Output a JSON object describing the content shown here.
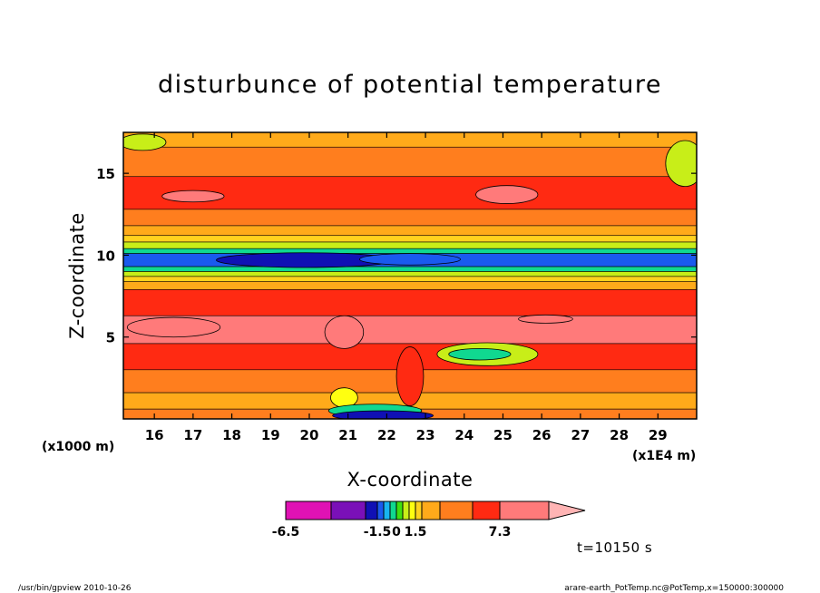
{
  "chart_data": {
    "type": "heatmap",
    "title": "disturbunce of potential temperature",
    "xlabel": "X-coordinate",
    "ylabel": "Z-coordinate",
    "x_unit_left": "(x1000 m)",
    "x_unit_right": "(x1E4 m)",
    "x_ticks": [
      16,
      17,
      18,
      19,
      20,
      21,
      22,
      23,
      24,
      25,
      26,
      27,
      28,
      29
    ],
    "y_ticks": [
      5,
      10,
      15
    ],
    "xlim": [
      15.2,
      30
    ],
    "ylim": [
      0,
      17.5
    ],
    "colorbar": {
      "levels": [
        -6.5,
        -4.5,
        -2.5,
        -1.5,
        -1,
        -0.5,
        0,
        0.5,
        1,
        1.5,
        2.5,
        3.5,
        4.5,
        7.3
      ],
      "colors": [
        "#e012b4",
        "#7a10b8",
        "#1010b4",
        "#1a5aee",
        "#18b4f0",
        "#10d890",
        "#40e010",
        "#c8ee18",
        "#ffff10",
        "#ffd21e",
        "#ffaa1a",
        "#ff7e1e",
        "#ff2a12",
        "#ff7a7a",
        "#ffb4b4"
      ],
      "tick_labels": [
        {
          "text": "-6.5",
          "value": -6.5
        },
        {
          "text": "-1.5",
          "value": -1.5
        },
        {
          "text": "0",
          "value": 0
        },
        {
          "text": "1.5",
          "value": 1.5
        },
        {
          "text": "7.3",
          "value": 7.3
        }
      ]
    },
    "bands": [
      {
        "z": [
          16.6,
          17.5
        ],
        "value": 2.0
      },
      {
        "z": [
          14.8,
          16.6
        ],
        "value": 3.0
      },
      {
        "z": [
          12.8,
          14.8
        ],
        "value": 4.0
      },
      {
        "z": [
          11.8,
          12.8
        ],
        "value": 3.0
      },
      {
        "z": [
          11.2,
          11.8
        ],
        "value": 2.0
      },
      {
        "z": [
          10.8,
          11.2
        ],
        "value": 1.2
      },
      {
        "z": [
          10.4,
          10.8
        ],
        "value": 0.3
      },
      {
        "z": [
          10.1,
          10.4
        ],
        "value": -0.8
      },
      {
        "z": [
          9.3,
          10.1
        ],
        "value": -2.0
      },
      {
        "z": [
          9.0,
          9.3
        ],
        "value": -0.8
      },
      {
        "z": [
          8.7,
          9.0
        ],
        "value": 0.3
      },
      {
        "z": [
          8.4,
          8.7
        ],
        "value": 1.2
      },
      {
        "z": [
          7.9,
          8.4
        ],
        "value": 2.0
      },
      {
        "z": [
          6.3,
          7.9
        ],
        "value": 4.0
      },
      {
        "z": [
          4.6,
          6.3
        ],
        "value": 5.0
      },
      {
        "z": [
          3.0,
          4.6
        ],
        "value": 4.0
      },
      {
        "z": [
          1.6,
          3.0
        ],
        "value": 3.0
      },
      {
        "z": [
          0.6,
          1.6
        ],
        "value": 2.0
      },
      {
        "z": [
          0.0,
          0.6
        ],
        "value": 3.0
      }
    ],
    "features": [
      {
        "kind": "ellipse",
        "x": 19.9,
        "z": 9.7,
        "rx": 2.3,
        "rz": 0.45,
        "value": -3.5
      },
      {
        "kind": "ellipse",
        "x": 22.6,
        "z": 9.75,
        "rx": 1.3,
        "rz": 0.35,
        "value": -1.8
      },
      {
        "kind": "ellipse",
        "x": 24.6,
        "z": 3.95,
        "rx": 1.3,
        "rz": 0.7,
        "value": 0.3
      },
      {
        "kind": "ellipse",
        "x": 24.4,
        "z": 3.95,
        "rx": 0.8,
        "rz": 0.35,
        "value": -0.8
      },
      {
        "kind": "ellipse",
        "x": 20.9,
        "z": 1.3,
        "rx": 0.35,
        "rz": 0.6,
        "value": 0.5
      },
      {
        "kind": "ellipse",
        "x": 21.7,
        "z": 0.5,
        "rx": 1.2,
        "rz": 0.4,
        "value": -0.8
      },
      {
        "kind": "ellipse",
        "x": 21.9,
        "z": 0.2,
        "rx": 1.3,
        "rz": 0.3,
        "value": -3.5
      },
      {
        "kind": "ellipse",
        "x": 22.6,
        "z": 2.6,
        "rx": 0.35,
        "rz": 1.8,
        "value": 4.0
      },
      {
        "kind": "ellipse",
        "x": 16.5,
        "z": 5.6,
        "rx": 1.2,
        "rz": 0.6,
        "value": 6.0
      },
      {
        "kind": "ellipse",
        "x": 20.9,
        "z": 5.3,
        "rx": 0.5,
        "rz": 1.0,
        "value": 6.0
      },
      {
        "kind": "ellipse",
        "x": 17.0,
        "z": 13.6,
        "rx": 0.8,
        "rz": 0.35,
        "value": 5.0
      },
      {
        "kind": "ellipse",
        "x": 25.1,
        "z": 13.7,
        "rx": 0.8,
        "rz": 0.55,
        "value": 5.0
      },
      {
        "kind": "ellipse",
        "x": 26.1,
        "z": 6.1,
        "rx": 0.7,
        "rz": 0.25,
        "value": 6.0
      },
      {
        "kind": "ellipse",
        "x": 29.7,
        "z": 15.6,
        "rx": 0.5,
        "rz": 1.4,
        "value": 0.3
      },
      {
        "kind": "ellipse",
        "x": 15.7,
        "z": 16.9,
        "rx": 0.6,
        "rz": 0.5,
        "value": 0.3
      }
    ],
    "grid": false,
    "time_label": "t=10150 s"
  },
  "footer": {
    "left": "/usr/bin/gpview  2010-10-26",
    "right": "arare-earth_PotTemp.nc@PotTemp,x=150000:300000"
  }
}
